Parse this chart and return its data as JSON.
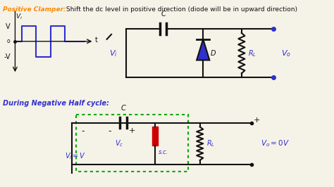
{
  "bg_color": "#c8c8b8",
  "title_bold": "Positive Clamper:",
  "title_rest": " Shift the dc level in positive direction (diode will be in upward direction)",
  "section2": "During Negative Half cycle:",
  "orange": "#ff8800",
  "blue": "#3030cc",
  "green": "#00aa00",
  "red": "#cc0000",
  "black": "#111111",
  "white_panel": "#f5f2e8"
}
